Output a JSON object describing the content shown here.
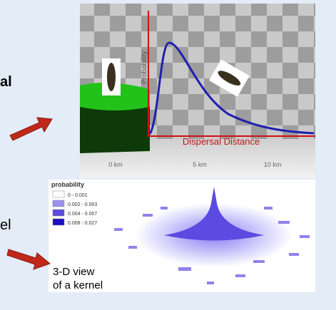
{
  "slide": {
    "left_text_1": "al",
    "left_text_2": "el"
  },
  "dispersal_image": {
    "y_label": "Probability",
    "x_label": "Dispersal Distance",
    "x_ticks": [
      "0 km",
      "5 km",
      "10 km"
    ]
  },
  "kernel_image": {
    "legend_title": "probability",
    "legend": [
      {
        "label": "0 - 0.001",
        "color": "#ffffff"
      },
      {
        "label": "0.002 - 0.003",
        "color": "#9b8ff0"
      },
      {
        "label": "0.004 - 0.007",
        "color": "#5b4be0"
      },
      {
        "label": "0.008 - 0.027",
        "color": "#1a0fc4"
      }
    ],
    "caption": [
      "3-D view",
      "of a kernel"
    ]
  }
}
